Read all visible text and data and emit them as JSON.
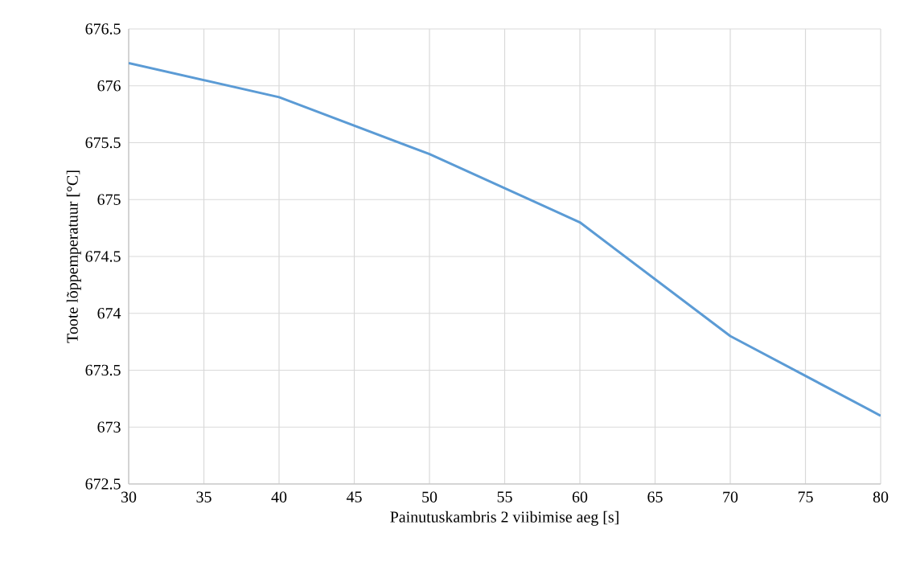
{
  "chart_data": {
    "type": "line",
    "xlabel": "Painutuskambris 2 viibimise aeg [s]",
    "ylabel": "Toote lõppemperatuur [°C]",
    "x": [
      30,
      40,
      50,
      60,
      70,
      80
    ],
    "series": [
      {
        "color": "#5b9bd5",
        "values": [
          676.2,
          675.9,
          675.4,
          674.8,
          673.8,
          673.1
        ]
      }
    ],
    "xlim": [
      30,
      80
    ],
    "xticks": [
      30,
      35,
      40,
      45,
      50,
      55,
      60,
      65,
      70,
      75,
      80
    ],
    "ylim": [
      672.5,
      676.5
    ],
    "yticks": [
      672.5,
      673,
      673.5,
      674,
      674.5,
      675,
      675.5,
      676,
      676.5
    ],
    "grid": true,
    "marker": "none",
    "line_style": "solid"
  }
}
